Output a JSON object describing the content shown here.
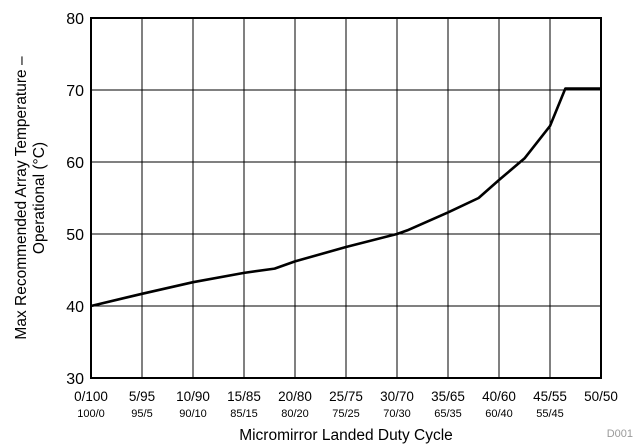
{
  "chart_data": {
    "type": "line",
    "xlabel": "Micromirror Landed Duty Cycle",
    "ylabel_lines": [
      "Max Recommended Array Temperature –",
      "Operational (°C)"
    ],
    "categories": [
      "0/100",
      "5/95",
      "10/90",
      "15/85",
      "20/80",
      "25/75",
      "30/70",
      "35/65",
      "40/60",
      "45/55",
      "50/50"
    ],
    "categories_secondary": [
      "100/0",
      "95/5",
      "90/10",
      "85/15",
      "80/20",
      "75/25",
      "70/30",
      "65/35",
      "60/40",
      "55/45",
      ""
    ],
    "ylim": [
      30,
      80
    ],
    "yticks": [
      30,
      40,
      50,
      60,
      70,
      80
    ],
    "grid": true,
    "series": [
      {
        "x": [
          0,
          1,
          2,
          3,
          3.6,
          4,
          5,
          6,
          6.2,
          7,
          7.6,
          8,
          8.5,
          9,
          9.3,
          10
        ],
        "y": [
          40,
          41.7,
          43.3,
          44.6,
          45.2,
          46.2,
          48.2,
          50,
          50.5,
          53,
          55,
          57.5,
          60.5,
          65,
          70.2,
          70.2
        ]
      }
    ]
  },
  "footnote": "D001"
}
